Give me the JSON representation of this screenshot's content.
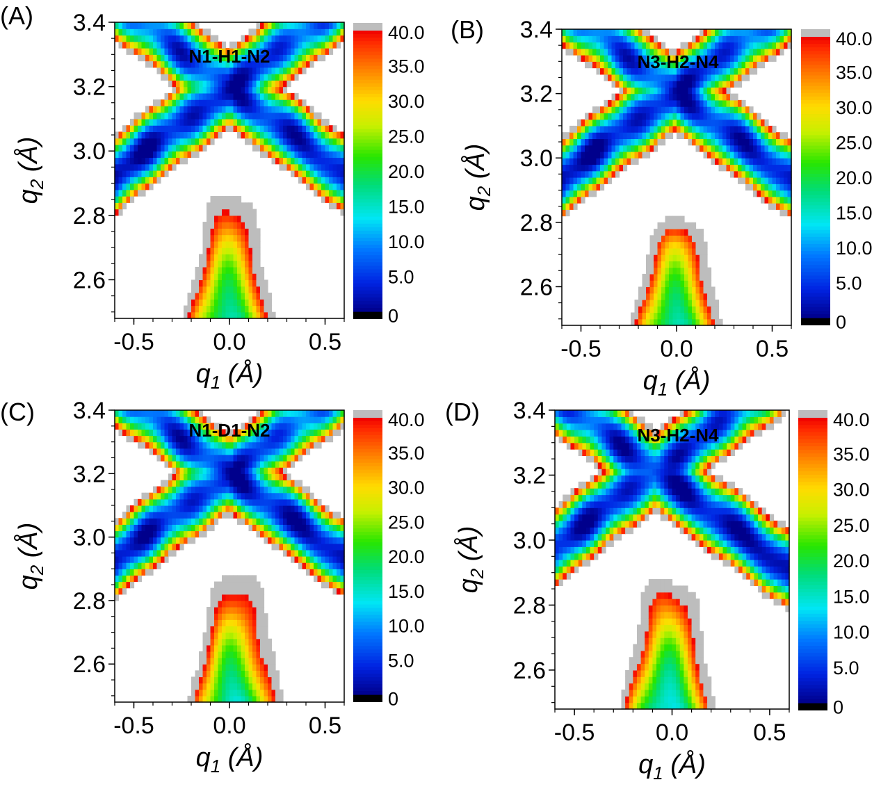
{
  "chart_data": [
    {
      "type": "heatmap",
      "panel_label": "(A)",
      "title": "N1-H1-N2",
      "xlim": [
        -0.6,
        0.6
      ],
      "ylim": [
        2.48,
        3.4
      ],
      "x_ticks": [
        -0.5,
        0.0,
        0.5
      ],
      "y_ticks": [
        2.6,
        2.8,
        3.0,
        3.2,
        3.4
      ],
      "x_tick_labels": [
        "-0.5",
        "0.0",
        "0.5"
      ],
      "y_tick_labels": [
        "2.6",
        "2.8",
        "3.0",
        "3.2",
        "3.4"
      ],
      "xlabel": {
        "main": "q",
        "sub": "1",
        "unit": " (Å)"
      },
      "ylabel": {
        "main": "q",
        "sub": "2",
        "unit": " (Å)"
      },
      "colorbar": {
        "min": 0,
        "max": 40,
        "ticks": [
          0,
          5,
          10,
          15,
          20,
          25,
          30,
          35,
          40
        ],
        "tick_labels": [
          "0",
          "5.0",
          "10.0",
          "15.0",
          "20.0",
          "25.0",
          "30.0",
          "35.0",
          "40.0"
        ],
        "overflow_color": "#bdbdbd",
        "underflow_color": "#000000"
      },
      "minima": [
        {
          "q1": -0.44,
          "q2": 3.0,
          "value": 1.5
        },
        {
          "q1": 0.44,
          "q2": 3.0,
          "value": 2.5
        }
      ],
      "transition_region": {
        "q1": 0.0,
        "q2": 2.8,
        "value": 38
      }
    },
    {
      "type": "heatmap",
      "panel_label": "(B)",
      "title": "N3-H2-N4",
      "xlim": [
        -0.6,
        0.6
      ],
      "ylim": [
        2.48,
        3.4
      ],
      "x_ticks": [
        -0.5,
        0.0,
        0.5
      ],
      "y_ticks": [
        2.6,
        2.8,
        3.0,
        3.2,
        3.4
      ],
      "x_tick_labels": [
        "-0.5",
        "0.0",
        "0.5"
      ],
      "y_tick_labels": [
        "2.6",
        "2.8",
        "3.0",
        "3.2",
        "3.4"
      ],
      "xlabel": {
        "main": "q",
        "sub": "1",
        "unit": " (Å)"
      },
      "ylabel": {
        "main": "q",
        "sub": "2",
        "unit": " (Å)"
      },
      "colorbar": {
        "min": 0,
        "max": 40,
        "ticks": [
          0,
          5,
          10,
          15,
          20,
          25,
          30,
          35,
          40
        ],
        "tick_labels": [
          "0",
          "5.0",
          "10.0",
          "15.0",
          "20.0",
          "25.0",
          "30.0",
          "35.0",
          "40.0"
        ],
        "overflow_color": "#bdbdbd",
        "underflow_color": "#000000"
      },
      "minima": [
        {
          "q1": -0.47,
          "q2": 3.0,
          "value": 1.5
        },
        {
          "q1": 0.45,
          "q2": 3.0,
          "value": 2.5
        }
      ],
      "transition_region": {
        "q1": 0.0,
        "q2": 2.72,
        "value": 32
      }
    },
    {
      "type": "heatmap",
      "panel_label": "(C)",
      "title": "N1-D1-N2",
      "xlim": [
        -0.6,
        0.6
      ],
      "ylim": [
        2.48,
        3.4
      ],
      "x_ticks": [
        -0.5,
        0.0,
        0.5
      ],
      "y_ticks": [
        2.6,
        2.8,
        3.0,
        3.2,
        3.4
      ],
      "x_tick_labels": [
        "-0.5",
        "0.0",
        "0.5"
      ],
      "y_tick_labels": [
        "2.6",
        "2.8",
        "3.0",
        "3.2",
        "3.4"
      ],
      "xlabel": {
        "main": "q",
        "sub": "1",
        "unit": " (Å)"
      },
      "ylabel": {
        "main": "q",
        "sub": "2",
        "unit": " (Å)"
      },
      "colorbar": {
        "min": 0,
        "max": 40,
        "ticks": [
          0,
          5,
          10,
          15,
          20,
          25,
          30,
          35,
          40
        ],
        "tick_labels": [
          "0",
          "5.0",
          "10.0",
          "15.0",
          "20.0",
          "25.0",
          "30.0",
          "35.0",
          "40.0"
        ],
        "overflow_color": "#bdbdbd",
        "underflow_color": "#000000"
      },
      "minima": [
        {
          "q1": -0.45,
          "q2": 3.0,
          "value": 2.5
        },
        {
          "q1": 0.45,
          "q2": 3.0,
          "value": 1.5
        }
      ],
      "transition_region": {
        "q1": 0.03,
        "q2": 2.82,
        "value": 38
      }
    },
    {
      "type": "heatmap",
      "panel_label": "(D)",
      "title": "N3-H2-N4",
      "xlim": [
        -0.6,
        0.6
      ],
      "ylim": [
        2.48,
        3.4
      ],
      "x_ticks": [
        -0.5,
        0.0,
        0.5
      ],
      "y_ticks": [
        2.6,
        2.8,
        3.0,
        3.2,
        3.4
      ],
      "x_tick_labels": [
        "-0.5",
        "0.0",
        "0.5"
      ],
      "y_tick_labels": [
        "2.6",
        "2.8",
        "3.0",
        "3.2",
        "3.4"
      ],
      "xlabel": {
        "main": "q",
        "sub": "1",
        "unit": " (Å)"
      },
      "ylabel": {
        "main": "q",
        "sub": "2",
        "unit": " (Å)"
      },
      "colorbar": {
        "min": 0,
        "max": 40,
        "ticks": [
          0,
          5,
          10,
          15,
          20,
          25,
          30,
          35,
          40
        ],
        "tick_labels": [
          "0",
          "5.0",
          "10.0",
          "15.0",
          "20.0",
          "25.0",
          "30.0",
          "35.0",
          "40.0"
        ],
        "overflow_color": "#bdbdbd",
        "underflow_color": "#000000"
      },
      "minima": [
        {
          "q1": -0.45,
          "q2": 3.05,
          "value": 2.5
        },
        {
          "q1": 0.44,
          "q2": 2.98,
          "value": 1.0
        }
      ],
      "transition_region": {
        "q1": -0.02,
        "q2": 2.8,
        "value": 35
      }
    }
  ]
}
